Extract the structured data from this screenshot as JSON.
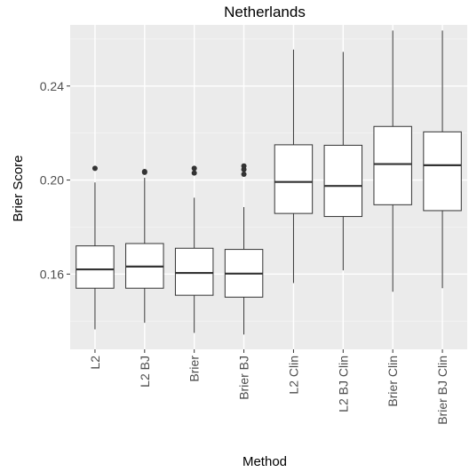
{
  "chart_data": {
    "type": "boxplot",
    "title": "Netherlands",
    "xlabel": "Method",
    "ylabel": "Brier Score",
    "ylim": [
      0.128,
      0.266
    ],
    "y_ticks": [
      0.16,
      0.2,
      0.24
    ],
    "y_tick_labels": [
      "0.16",
      "0.20",
      "0.24"
    ],
    "grid": true,
    "categories": [
      "L2",
      "L2 BJ",
      "Brier",
      "Brier BJ",
      "L2 Clin",
      "L2 BJ Clin",
      "Brier Clin",
      "Brier BJ Clin"
    ],
    "boxes": [
      {
        "category": "L2",
        "whisker_low": 0.1365,
        "q1": 0.154,
        "median": 0.162,
        "q3": 0.172,
        "whisker_high": 0.199,
        "outliers": [
          0.205
        ]
      },
      {
        "category": "L2 BJ",
        "whisker_low": 0.1393,
        "q1": 0.154,
        "median": 0.1632,
        "q3": 0.173,
        "whisker_high": 0.201,
        "outliers": [
          0.2033,
          0.2036
        ]
      },
      {
        "category": "Brier",
        "whisker_low": 0.135,
        "q1": 0.151,
        "median": 0.1605,
        "q3": 0.171,
        "whisker_high": 0.1925,
        "outliers": [
          0.203,
          0.205
        ]
      },
      {
        "category": "Brier BJ",
        "whisker_low": 0.1343,
        "q1": 0.1502,
        "median": 0.1602,
        "q3": 0.1705,
        "whisker_high": 0.1885,
        "outliers": [
          0.2025,
          0.2045,
          0.206
        ]
      },
      {
        "category": "L2 Clin",
        "whisker_low": 0.1562,
        "q1": 0.1858,
        "median": 0.1992,
        "q3": 0.215,
        "whisker_high": 0.2555,
        "outliers": []
      },
      {
        "category": "L2 BJ Clin",
        "whisker_low": 0.1616,
        "q1": 0.1845,
        "median": 0.1975,
        "q3": 0.2148,
        "whisker_high": 0.2545,
        "outliers": []
      },
      {
        "category": "Brier Clin",
        "whisker_low": 0.1525,
        "q1": 0.1895,
        "median": 0.2068,
        "q3": 0.2228,
        "whisker_high": 0.2636,
        "outliers": []
      },
      {
        "category": "Brier BJ Clin",
        "whisker_low": 0.154,
        "q1": 0.187,
        "median": 0.2063,
        "q3": 0.2205,
        "whisker_high": 0.2636,
        "outliers": []
      }
    ],
    "colors": {
      "panel": "#ebebeb",
      "grid_major": "#ffffff",
      "grid_minor": "#f5f5f5",
      "box_fill": "#ffffff",
      "box_line": "#333333",
      "tick": "#333333",
      "outlier": "#333333"
    }
  }
}
